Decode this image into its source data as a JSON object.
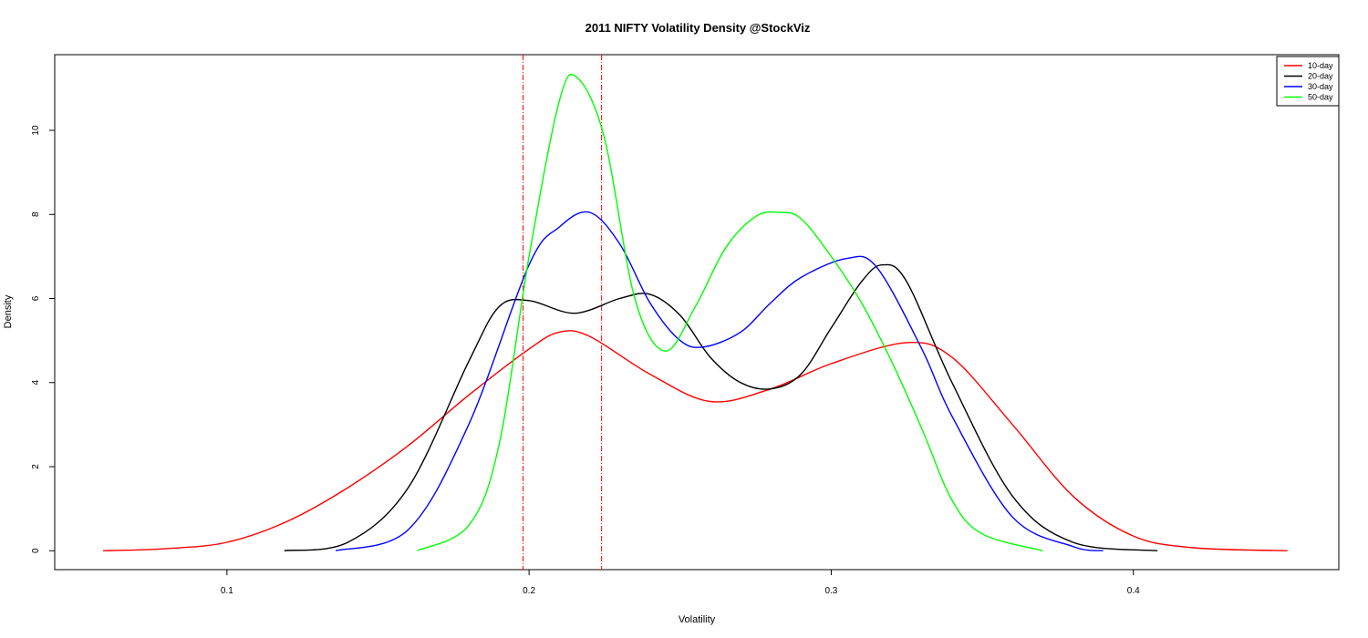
{
  "chart_data": {
    "type": "line",
    "title": "2011 NIFTY Volatility Density @StockViz",
    "xlabel": "Volatility",
    "ylabel": "Density",
    "xlim": [
      0.043,
      0.468
    ],
    "ylim": [
      -0.45,
      11.8
    ],
    "x_ticks": [
      0.1,
      0.2,
      0.3,
      0.4
    ],
    "x_tick_labels": [
      "0.1",
      "0.2",
      "0.3",
      "0.4"
    ],
    "y_ticks": [
      0,
      2,
      4,
      6,
      8,
      10
    ],
    "y_tick_labels": [
      "0",
      "2",
      "4",
      "6",
      "8",
      "10"
    ],
    "grid": false,
    "legend_position": "top-right",
    "vlines": [
      {
        "x": 0.198,
        "color": "#ff0000",
        "style": "dashed"
      },
      {
        "x": 0.224,
        "color": "#ff0000",
        "style": "dashed"
      }
    ],
    "series": [
      {
        "name": "10-day",
        "color": "#ff0000",
        "x": [
          0.059,
          0.08,
          0.1,
          0.12,
          0.14,
          0.16,
          0.18,
          0.2,
          0.21,
          0.22,
          0.24,
          0.26,
          0.28,
          0.3,
          0.325,
          0.34,
          0.36,
          0.38,
          0.4,
          0.42,
          0.451
        ],
        "y": [
          0.0,
          0.05,
          0.2,
          0.7,
          1.5,
          2.5,
          3.7,
          4.8,
          5.2,
          5.1,
          4.2,
          3.55,
          3.85,
          4.45,
          4.95,
          4.6,
          3.0,
          1.3,
          0.35,
          0.07,
          0.0
        ]
      },
      {
        "name": "20-day",
        "color": "#000000",
        "x": [
          0.119,
          0.14,
          0.16,
          0.18,
          0.19,
          0.2,
          0.215,
          0.23,
          0.24,
          0.25,
          0.26,
          0.27,
          0.28,
          0.29,
          0.3,
          0.31,
          0.317,
          0.325,
          0.34,
          0.36,
          0.38,
          0.408
        ],
        "y": [
          0.0,
          0.2,
          1.5,
          4.5,
          5.8,
          5.95,
          5.65,
          6.0,
          6.1,
          5.6,
          4.6,
          4.0,
          3.85,
          4.2,
          5.3,
          6.4,
          6.8,
          6.4,
          4.0,
          1.3,
          0.2,
          0.0
        ]
      },
      {
        "name": "30-day",
        "color": "#0000ff",
        "x": [
          0.136,
          0.16,
          0.18,
          0.2,
          0.21,
          0.22,
          0.23,
          0.24,
          0.25,
          0.258,
          0.27,
          0.28,
          0.29,
          0.305,
          0.315,
          0.33,
          0.34,
          0.36,
          0.38,
          0.39
        ],
        "y": [
          0.0,
          0.5,
          3.0,
          6.8,
          7.7,
          8.05,
          7.3,
          5.9,
          5.0,
          4.85,
          5.2,
          5.9,
          6.5,
          6.95,
          6.75,
          4.8,
          3.2,
          0.8,
          0.1,
          0.0
        ]
      },
      {
        "name": "50-day",
        "color": "#00ff00",
        "x": [
          0.163,
          0.18,
          0.19,
          0.2,
          0.21,
          0.216,
          0.225,
          0.235,
          0.245,
          0.255,
          0.265,
          0.275,
          0.283,
          0.29,
          0.3,
          0.31,
          0.32,
          0.33,
          0.34,
          0.35,
          0.37
        ],
        "y": [
          0.0,
          0.6,
          2.5,
          7.0,
          10.7,
          11.25,
          9.8,
          6.0,
          4.75,
          5.8,
          7.2,
          7.95,
          8.05,
          7.9,
          7.0,
          5.9,
          4.5,
          2.9,
          1.2,
          0.4,
          0.0
        ]
      }
    ]
  }
}
